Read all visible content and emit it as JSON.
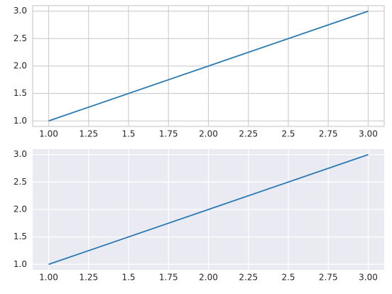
{
  "chart_data": [
    {
      "type": "line",
      "x": [
        1,
        2,
        3
      ],
      "series": [
        {
          "color": "#2a7ab4",
          "values": [
            1,
            2,
            3
          ]
        }
      ],
      "xlim": [
        0.9,
        3.1
      ],
      "ylim": [
        0.9,
        3.1
      ],
      "xticks": [
        {
          "value": 1,
          "label": "1.00"
        },
        1.25,
        1.5,
        1.75,
        {
          "value": 2,
          "label": "2.00"
        },
        2.25,
        2.5,
        2.75,
        {
          "value": 3,
          "label": "3.00"
        }
      ],
      "yticks": [
        {
          "value": 1,
          "label": "1.0"
        },
        1.5,
        {
          "value": 2,
          "label": "2.0"
        },
        2.5,
        {
          "value": 3,
          "label": "3.0"
        }
      ],
      "grid": true,
      "background": "#ffffff",
      "grid_color": "#d0d0d0",
      "frame_color": "#cccccc"
    },
    {
      "type": "line",
      "x": [
        1,
        2,
        3
      ],
      "series": [
        {
          "color": "#2a7ab4",
          "values": [
            1,
            2,
            3
          ]
        }
      ],
      "xlim": [
        0.9,
        3.1
      ],
      "ylim": [
        0.9,
        3.1
      ],
      "xticks": [
        {
          "value": 1,
          "label": "1.00"
        },
        1.25,
        1.5,
        1.75,
        {
          "value": 2,
          "label": "2.00"
        },
        2.25,
        2.5,
        2.75,
        {
          "value": 3,
          "label": "3.00"
        }
      ],
      "yticks": [
        {
          "value": 1,
          "label": "1.0"
        },
        1.5,
        {
          "value": 2,
          "label": "2.0"
        },
        2.5,
        {
          "value": 3,
          "label": "3.0"
        }
      ],
      "grid": true,
      "background": "#eaeaf2",
      "grid_color": "#ffffff",
      "frame_color": null
    }
  ]
}
